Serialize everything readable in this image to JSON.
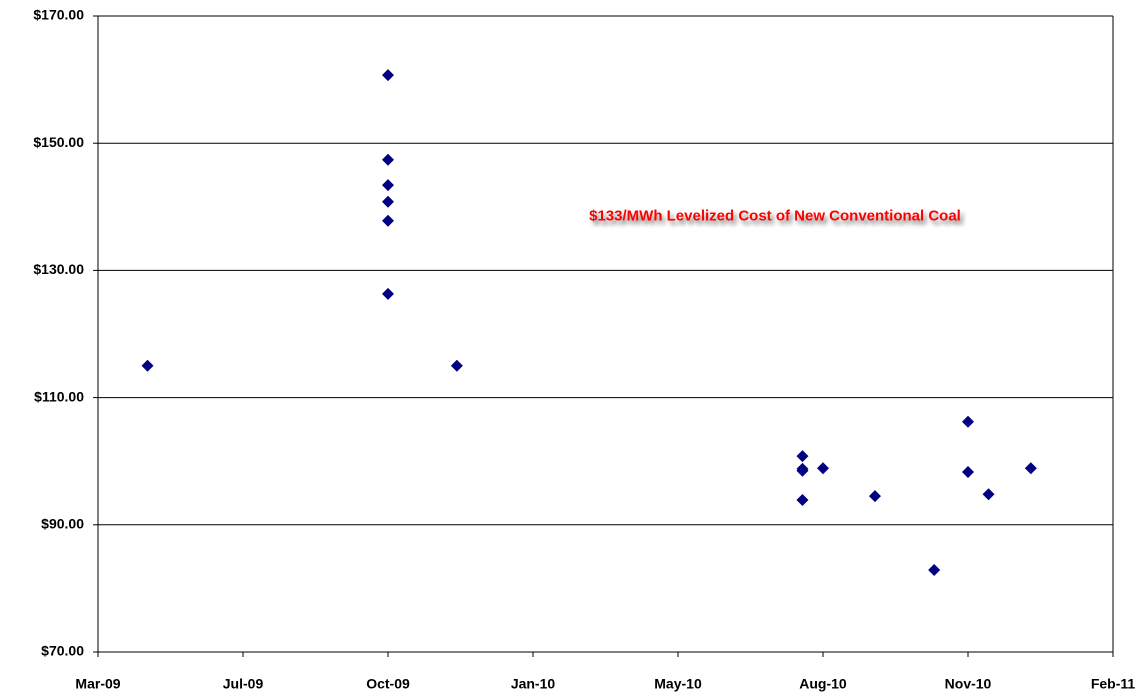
{
  "chart_data": {
    "type": "scatter",
    "x": [
      39914,
      40113,
      40113,
      40113,
      40113,
      40113,
      40113,
      40170,
      40456,
      40456,
      40456,
      40456,
      40473,
      40516,
      40565,
      40593,
      40593,
      40610,
      40645
    ],
    "values": [
      115.0,
      160.7,
      147.4,
      143.4,
      140.8,
      137.8,
      126.3,
      115.0,
      100.8,
      98.8,
      98.5,
      93.9,
      98.9,
      94.5,
      82.9,
      106.2,
      98.3,
      94.8,
      98.9
    ],
    "color": "#000080",
    "xlim": [
      39873,
      40713
    ],
    "xticks": [
      {
        "value": 39873,
        "label": "Mar-09"
      },
      {
        "value": 39993,
        "label": "Jul-09"
      },
      {
        "value": 40113,
        "label": "Oct-09"
      },
      {
        "value": 40233,
        "label": "Jan-10"
      },
      {
        "value": 40353,
        "label": "May-10"
      },
      {
        "value": 40473,
        "label": "Aug-10"
      },
      {
        "value": 40593,
        "label": "Nov-10"
      },
      {
        "value": 40713,
        "label": "Feb-11"
      }
    ],
    "ylim": [
      70,
      170
    ],
    "yticks": [
      {
        "value": 70,
        "label": "$70.00"
      },
      {
        "value": 90,
        "label": "$90.00"
      },
      {
        "value": 110,
        "label": "$110.00"
      },
      {
        "value": 130,
        "label": "$130.00"
      },
      {
        "value": 150,
        "label": "$150.00"
      },
      {
        "value": 170,
        "label": "$170.00"
      }
    ],
    "grid": true,
    "reference_line": {
      "value": 133,
      "label": "$133/MWh Levelized Cost of New Conventional Coal",
      "color": "#ff0000"
    }
  }
}
